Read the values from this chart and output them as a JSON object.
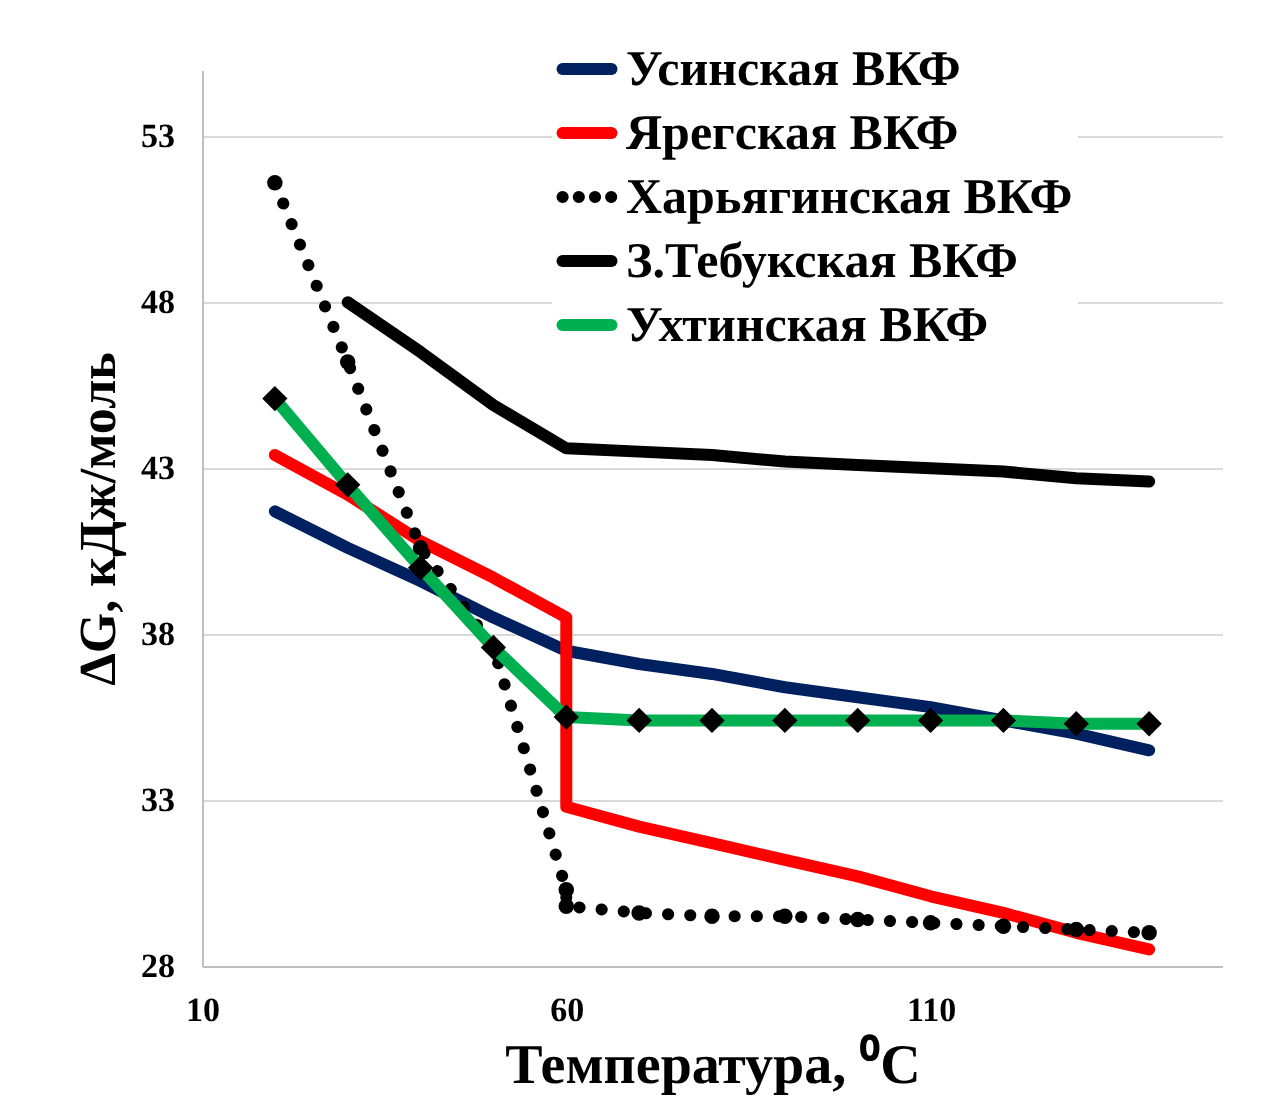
{
  "chart_data": {
    "type": "line",
    "xlabel": "Температура, ⁰C",
    "ylabel": "ΔG, кДж/моль",
    "xlim": [
      10,
      150
    ],
    "xticks": [
      10,
      60,
      110
    ],
    "ylim": [
      28,
      55
    ],
    "yticks": [
      28,
      33,
      38,
      43,
      48,
      53
    ],
    "grid": "y",
    "legend": "top right",
    "series": [
      {
        "name": "Усинская ВКФ",
        "color": "#002060",
        "marker": "none",
        "line_style": "solid",
        "x": [
          20,
          30,
          40,
          50,
          60,
          70,
          80,
          90,
          100,
          110,
          120,
          130,
          140
        ],
        "values": [
          41.7,
          40.6,
          39.6,
          38.5,
          37.5,
          37.1,
          36.8,
          36.4,
          36.1,
          35.8,
          35.4,
          35.0,
          34.5
        ]
      },
      {
        "name": "Ярегская ВКФ",
        "color": "#ff0000",
        "marker": "none",
        "line_style": "solid",
        "x": [
          20,
          30,
          40,
          50,
          60,
          60,
          70,
          80,
          90,
          100,
          110,
          120,
          130,
          140
        ],
        "values": [
          43.4,
          42.2,
          40.8,
          39.7,
          38.5,
          32.8,
          32.2,
          31.7,
          31.2,
          30.7,
          30.1,
          29.6,
          29.0,
          28.5
        ]
      },
      {
        "name": "Харьягинская ВКФ",
        "color": "#000000",
        "marker": "circle",
        "line_style": "dotted",
        "x": [
          20,
          30,
          40,
          50,
          60,
          60,
          70,
          80,
          90,
          100,
          110,
          120,
          130,
          140
        ],
        "values": [
          51.6,
          46.2,
          40.6,
          37.6,
          30.3,
          29.8,
          29.6,
          29.5,
          29.5,
          29.4,
          29.3,
          29.2,
          29.1,
          29.0
        ]
      },
      {
        "name": "З.Тебукская ВКФ",
        "color": "#000000",
        "marker": "none",
        "line_style": "solid",
        "x": [
          30,
          40,
          50,
          60,
          70,
          80,
          90,
          100,
          110,
          120,
          130,
          140
        ],
        "values": [
          48.0,
          46.5,
          44.9,
          43.6,
          43.5,
          43.4,
          43.2,
          43.1,
          43.0,
          42.9,
          42.7,
          42.6
        ]
      },
      {
        "name": "Ухтинская ВКФ",
        "color": "#00b050",
        "marker": "diamond",
        "line_style": "solid",
        "x": [
          20,
          30,
          40,
          50,
          60,
          70,
          80,
          90,
          100,
          110,
          120,
          130,
          140
        ],
        "values": [
          45.1,
          42.5,
          40.0,
          37.6,
          35.5,
          35.4,
          35.4,
          35.4,
          35.4,
          35.4,
          35.4,
          35.3,
          35.3
        ]
      }
    ]
  }
}
